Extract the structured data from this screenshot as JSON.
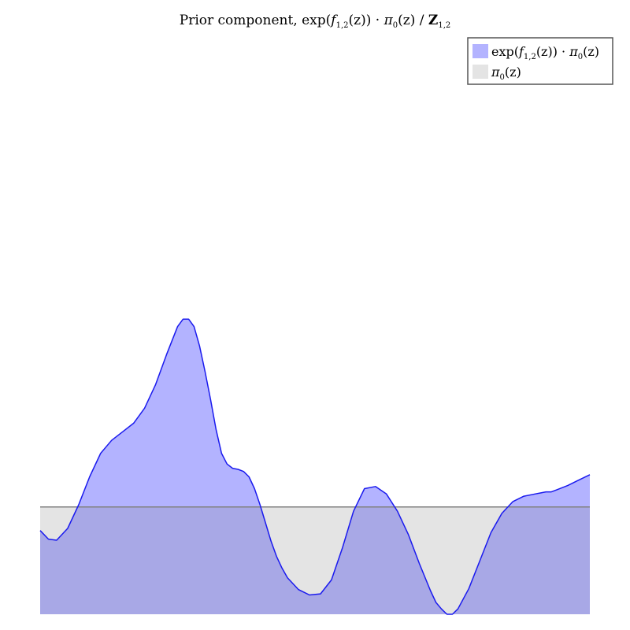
{
  "chart_data": {
    "type": "area",
    "title": "Prior component, exp(f1,2(z)) · π0(z) / Z1,2",
    "title_parts": {
      "lead": "Prior component, ",
      "exp_open": "exp(",
      "f": "f",
      "f_sub": "1,2",
      "f_arg": "(z)) · ",
      "pi": "π",
      "pi_sub": "0",
      "pi_arg": "(z) / ",
      "Z": "Z",
      "Z_sub": "1,2"
    },
    "xlabel": "",
    "ylabel": "",
    "grid": false,
    "axes_visible": false,
    "legend_placement": "top-right",
    "colors": {
      "prior_fill": "#b3b3ff",
      "prior_line": "#1a1aee",
      "base_fill": "#e4e4e4",
      "base_line": "#808080",
      "overlap_fill": "#a8a8e6",
      "legend_border": "#555555"
    },
    "legend": [
      {
        "label": "exp(f1,2(z)) · π0(z)",
        "parts": {
          "exp_open": "exp(",
          "f": "f",
          "f_sub": "1,2",
          "f_arg": "(z)) · ",
          "pi": "π",
          "pi_sub": "0",
          "pi_arg": "(z)"
        },
        "color": "#b3b3ff"
      },
      {
        "label": "π0(z)",
        "parts": {
          "pi": "π",
          "pi_sub": "0",
          "pi_arg": "(z)"
        },
        "color": "#e4e4e4"
      }
    ],
    "xlim": [
      0,
      1
    ],
    "ylim": [
      0,
      2.7
    ],
    "series": [
      {
        "name": "exp(f1,2(z)) · π0(z)",
        "x": [
          0,
          0.015,
          0.03,
          0.05,
          0.07,
          0.09,
          0.11,
          0.13,
          0.15,
          0.17,
          0.19,
          0.21,
          0.23,
          0.25,
          0.26,
          0.27,
          0.28,
          0.29,
          0.3,
          0.31,
          0.32,
          0.33,
          0.34,
          0.35,
          0.36,
          0.37,
          0.38,
          0.39,
          0.4,
          0.41,
          0.42,
          0.43,
          0.44,
          0.45,
          0.47,
          0.49,
          0.51,
          0.53,
          0.55,
          0.57,
          0.59,
          0.61,
          0.63,
          0.65,
          0.67,
          0.69,
          0.71,
          0.72,
          0.73,
          0.74,
          0.75,
          0.76,
          0.78,
          0.8,
          0.82,
          0.84,
          0.86,
          0.88,
          0.9,
          0.91,
          0.92,
          0.93,
          0.94,
          0.96,
          0.98,
          1.0
        ],
        "y": [
          0.78,
          0.7,
          0.69,
          0.8,
          1.02,
          1.28,
          1.5,
          1.62,
          1.7,
          1.78,
          1.92,
          2.14,
          2.42,
          2.68,
          2.75,
          2.75,
          2.68,
          2.5,
          2.26,
          2.0,
          1.72,
          1.5,
          1.4,
          1.36,
          1.35,
          1.33,
          1.28,
          1.17,
          1.02,
          0.85,
          0.68,
          0.54,
          0.43,
          0.34,
          0.23,
          0.18,
          0.19,
          0.32,
          0.62,
          0.96,
          1.17,
          1.19,
          1.12,
          0.96,
          0.74,
          0.47,
          0.22,
          0.11,
          0.05,
          0.0,
          0.0,
          0.05,
          0.24,
          0.5,
          0.76,
          0.94,
          1.05,
          1.1,
          1.12,
          1.13,
          1.14,
          1.14,
          1.16,
          1.2,
          1.25,
          1.3
        ]
      },
      {
        "name": "π0(z)",
        "x": [
          0,
          1
        ],
        "y": [
          1.0,
          1.0
        ]
      }
    ]
  }
}
